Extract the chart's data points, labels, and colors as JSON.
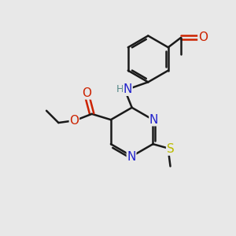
{
  "bg_color": "#e8e8e8",
  "bond_color": "#1a1a1a",
  "bond_width": 1.8,
  "atom_colors": {
    "N": "#2222cc",
    "O": "#cc2200",
    "S": "#bbbb00",
    "H": "#558888"
  },
  "font_size": 10,
  "figsize": [
    3.0,
    3.0
  ],
  "dpi": 100,
  "xlim": [
    0,
    10
  ],
  "ylim": [
    0,
    10
  ]
}
